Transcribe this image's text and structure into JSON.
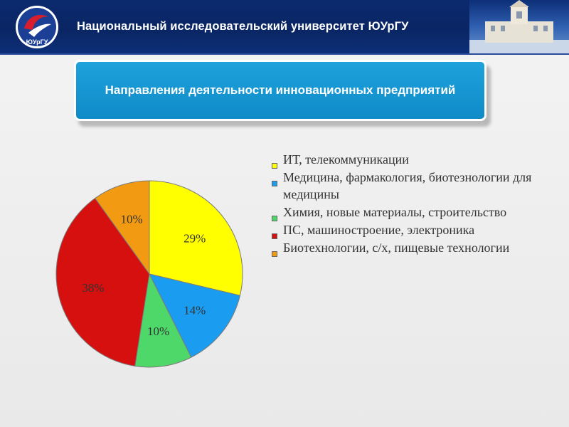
{
  "header": {
    "university": "Национальный исследовательский университет ЮУрГУ",
    "logo_text": "ЮУрГУ"
  },
  "banner": {
    "title": "Направления деятельности инновационных предприятий"
  },
  "chart_data": {
    "type": "pie",
    "slices": [
      {
        "label": "ИТ, телекоммуникации",
        "value": 29,
        "display": "29%",
        "color": "#ffff00"
      },
      {
        "label": "Медицина, фармакология, биотезнологии для медицины",
        "value": 14,
        "display": "14%",
        "color": "#1a9cf0"
      },
      {
        "label": "Химия, новые материалы, строительство",
        "value": 10,
        "display": "10%",
        "color": "#4fd86a"
      },
      {
        "label": "ПС, машиностроение, электроника",
        "value": 38,
        "display": "38%",
        "color": "#d60f0f"
      },
      {
        "label": "Биотехнологии, с/х, пищевые технологии",
        "value": 10,
        "display": "10%",
        "color": "#f39a13"
      }
    ],
    "legend_position": "right"
  }
}
